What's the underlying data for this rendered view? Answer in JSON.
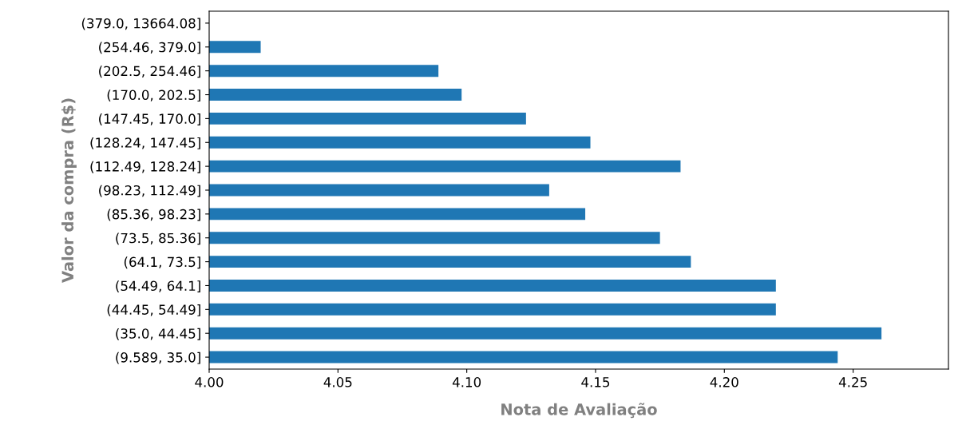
{
  "chart_data": {
    "type": "bar",
    "orientation": "horizontal",
    "xlabel": "Nota de Avaliação",
    "ylabel": "Valor da compra (R$)",
    "categories": [
      "(379.0, 13664.08]",
      "(254.46, 379.0]",
      "(202.5, 254.46]",
      "(170.0, 202.5]",
      "(147.45, 170.0]",
      "(128.24, 147.45]",
      "(112.49, 128.24]",
      "(98.23, 112.49]",
      "(85.36, 98.23]",
      "(73.5, 85.36]",
      "(64.1, 73.5]",
      "(54.49, 64.1]",
      "(44.45, 54.49]",
      "(35.0, 44.45]",
      "(9.589, 35.0]"
    ],
    "values": [
      null,
      4.02,
      4.089,
      4.098,
      4.123,
      4.148,
      4.183,
      4.132,
      4.146,
      4.175,
      4.187,
      4.22,
      4.22,
      4.261,
      4.244
    ],
    "color": "#1f77b4",
    "xlim": [
      4.0,
      4.287
    ],
    "xticks": [
      {
        "value": 4.0,
        "label": "4.00"
      },
      {
        "value": 4.05,
        "label": "4.05"
      },
      {
        "value": 4.1,
        "label": "4.10"
      },
      {
        "value": 4.15,
        "label": "4.15"
      },
      {
        "value": 4.2,
        "label": "4.20"
      },
      {
        "value": 4.25,
        "label": "4.25"
      }
    ],
    "grid": false,
    "legend": false
  }
}
